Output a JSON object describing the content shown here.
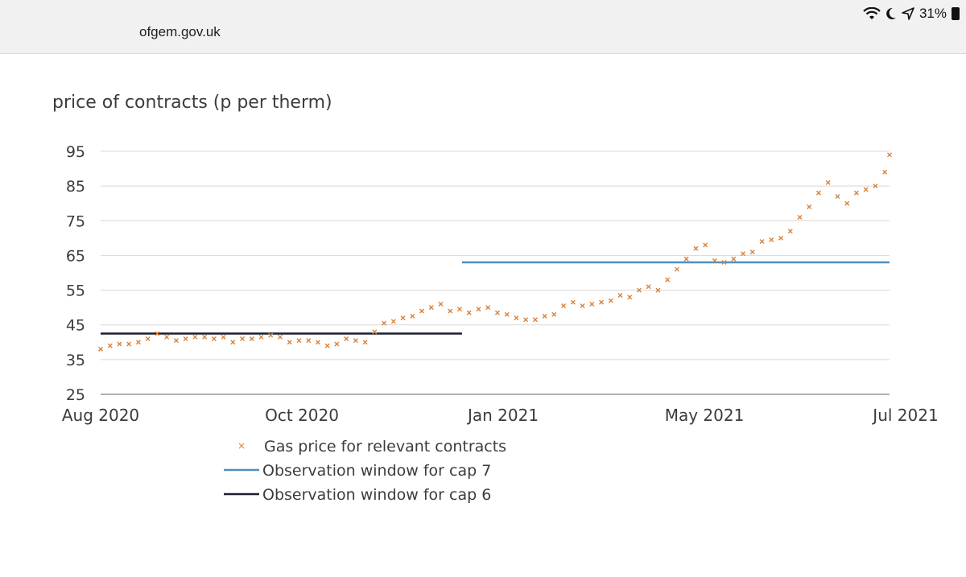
{
  "browser": {
    "url": "ofgem.gov.uk",
    "battery_percent": "31%"
  },
  "icons": [
    "wifi-icon",
    "moon-icon",
    "location-arrow-icon",
    "battery-icon"
  ],
  "chart_data": {
    "type": "scatter",
    "ylabel": "price of contracts (p per therm)",
    "ylim": [
      25,
      95
    ],
    "yticks": [
      95,
      85,
      75,
      65,
      55,
      45,
      35,
      25
    ],
    "xticks": [
      "Aug 2020",
      "Oct 2020",
      "Jan 2021",
      "May 2021",
      "Jul 2021"
    ],
    "x_range": [
      "2020-08-01",
      "2021-07-01"
    ],
    "grid": true,
    "legend_position": "bottom",
    "legend": [
      {
        "label": "Gas price for relevant contracts",
        "marker": "×",
        "color": "#d9823b"
      },
      {
        "label": "Observation window for cap 7",
        "color": "#4f8fbf"
      },
      {
        "label": "Observation window for cap 6",
        "color": "#1a1f2b"
      }
    ],
    "series": [
      {
        "name": "Gas price for relevant contracts",
        "color": "#d9823b",
        "points": [
          [
            "2020-08-01",
            38
          ],
          [
            "2020-08-05",
            39
          ],
          [
            "2020-08-09",
            39.5
          ],
          [
            "2020-08-13",
            39.5
          ],
          [
            "2020-08-17",
            40
          ],
          [
            "2020-08-21",
            41
          ],
          [
            "2020-08-25",
            42.5
          ],
          [
            "2020-08-29",
            41.5
          ],
          [
            "2020-09-02",
            40.5
          ],
          [
            "2020-09-06",
            41
          ],
          [
            "2020-09-10",
            41.5
          ],
          [
            "2020-09-14",
            41.5
          ],
          [
            "2020-09-18",
            41
          ],
          [
            "2020-09-22",
            41.5
          ],
          [
            "2020-09-26",
            40
          ],
          [
            "2020-09-30",
            41
          ],
          [
            "2020-10-04",
            41
          ],
          [
            "2020-10-08",
            41.5
          ],
          [
            "2020-10-12",
            42
          ],
          [
            "2020-10-16",
            41.5
          ],
          [
            "2020-10-20",
            40
          ],
          [
            "2020-10-24",
            40.5
          ],
          [
            "2020-10-28",
            40.5
          ],
          [
            "2020-11-01",
            40
          ],
          [
            "2020-11-05",
            39
          ],
          [
            "2020-11-09",
            39.5
          ],
          [
            "2020-11-13",
            41
          ],
          [
            "2020-11-17",
            40.5
          ],
          [
            "2020-11-21",
            40
          ],
          [
            "2020-11-25",
            43
          ],
          [
            "2020-11-29",
            45.5
          ],
          [
            "2020-12-03",
            46
          ],
          [
            "2020-12-07",
            47
          ],
          [
            "2020-12-11",
            47.5
          ],
          [
            "2020-12-15",
            49
          ],
          [
            "2020-12-19",
            50
          ],
          [
            "2020-12-23",
            51
          ],
          [
            "2020-12-27",
            49
          ],
          [
            "2020-12-31",
            49.5
          ],
          [
            "2021-01-04",
            48.5
          ],
          [
            "2021-01-08",
            49.5
          ],
          [
            "2021-01-12",
            50
          ],
          [
            "2021-01-16",
            48.5
          ],
          [
            "2021-01-20",
            48
          ],
          [
            "2021-01-24",
            47
          ],
          [
            "2021-01-28",
            46.5
          ],
          [
            "2021-02-01",
            46.5
          ],
          [
            "2021-02-05",
            47.5
          ],
          [
            "2021-02-09",
            48
          ],
          [
            "2021-02-13",
            50.5
          ],
          [
            "2021-02-17",
            51.5
          ],
          [
            "2021-02-21",
            50.5
          ],
          [
            "2021-02-25",
            51
          ],
          [
            "2021-03-01",
            51.5
          ],
          [
            "2021-03-05",
            52
          ],
          [
            "2021-03-09",
            53.5
          ],
          [
            "2021-03-13",
            53
          ],
          [
            "2021-03-17",
            55
          ],
          [
            "2021-03-21",
            56
          ],
          [
            "2021-03-25",
            55
          ],
          [
            "2021-03-29",
            58
          ],
          [
            "2021-04-02",
            61
          ],
          [
            "2021-04-06",
            64
          ],
          [
            "2021-04-10",
            67
          ],
          [
            "2021-04-14",
            68
          ],
          [
            "2021-04-18",
            63.5
          ],
          [
            "2021-04-22",
            63
          ],
          [
            "2021-04-26",
            64
          ],
          [
            "2021-04-30",
            65.5
          ],
          [
            "2021-05-04",
            66
          ],
          [
            "2021-05-08",
            69
          ],
          [
            "2021-05-12",
            69.5
          ],
          [
            "2021-05-16",
            70
          ],
          [
            "2021-05-20",
            72
          ],
          [
            "2021-05-24",
            76
          ],
          [
            "2021-05-28",
            79
          ],
          [
            "2021-06-01",
            83
          ],
          [
            "2021-06-05",
            86
          ],
          [
            "2021-06-09",
            82
          ],
          [
            "2021-06-13",
            80
          ],
          [
            "2021-06-17",
            83
          ],
          [
            "2021-06-21",
            84
          ],
          [
            "2021-06-25",
            85
          ],
          [
            "2021-06-29",
            89
          ],
          [
            "2021-07-01",
            94
          ]
        ]
      },
      {
        "name": "Observation window for cap 7",
        "color": "#4f8fbf",
        "points": [
          [
            "2021-01-01",
            63
          ],
          [
            "2021-07-01",
            63
          ]
        ]
      },
      {
        "name": "Observation window for cap 6",
        "color": "#1a1f2b",
        "points": [
          [
            "2020-08-01",
            42.5
          ],
          [
            "2021-01-01",
            42.5
          ]
        ]
      }
    ]
  }
}
